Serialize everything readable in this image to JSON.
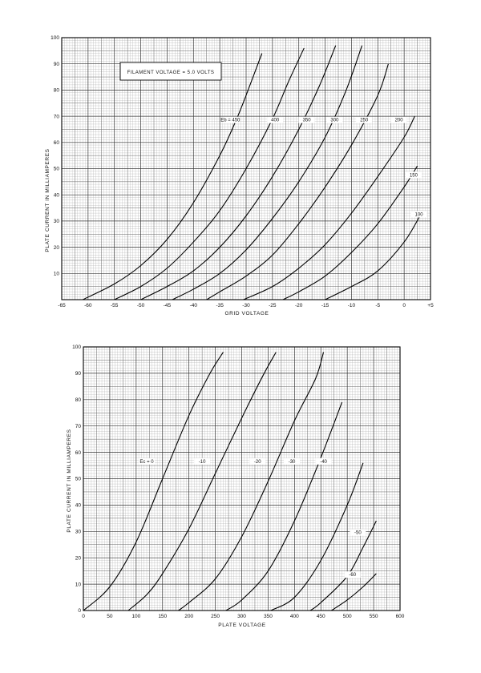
{
  "chart_data": [
    {
      "type": "line",
      "xlabel": "GRID VOLTAGE",
      "ylabel": "PLATE CURRENT IN MILLIAMPERES",
      "annotation": "FILAMENT VOLTAGE = 5.0 VOLTS",
      "xlim": [
        -65,
        5
      ],
      "ylim": [
        0,
        100
      ],
      "x_ticks": [
        "-65",
        "-60",
        "-55",
        "-50",
        "-45",
        "-40",
        "-35",
        "-30",
        "-25",
        "-20",
        "-15",
        "-10",
        "-5",
        "0",
        "+5"
      ],
      "y_ticks": [
        "10",
        "20",
        "30",
        "40",
        "50",
        "60",
        "70",
        "80",
        "90",
        "100"
      ],
      "grid": true,
      "series": [
        {
          "name": "Eb = 450",
          "label_at": [
            -33,
            68
          ],
          "points": [
            [
              -61,
              0
            ],
            [
              -55,
              6
            ],
            [
              -50,
              13
            ],
            [
              -45,
              23
            ],
            [
              -40,
              37
            ],
            [
              -35,
              55
            ],
            [
              -32,
              68
            ],
            [
              -30,
              78
            ],
            [
              -27,
              94
            ]
          ]
        },
        {
          "name": "400",
          "label_at": [
            -24.5,
            68
          ],
          "points": [
            [
              -55,
              0
            ],
            [
              -50,
              5
            ],
            [
              -45,
              12
            ],
            [
              -40,
              22
            ],
            [
              -35,
              34
            ],
            [
              -30,
              50
            ],
            [
              -25,
              69
            ],
            [
              -22,
              83
            ],
            [
              -19,
              96
            ]
          ]
        },
        {
          "name": "350",
          "label_at": [
            -18.5,
            68
          ],
          "points": [
            [
              -50,
              0
            ],
            [
              -45,
              5
            ],
            [
              -40,
              11
            ],
            [
              -35,
              20
            ],
            [
              -30,
              32
            ],
            [
              -25,
              47
            ],
            [
              -20,
              65
            ],
            [
              -16,
              82
            ],
            [
              -13,
              97
            ]
          ]
        },
        {
          "name": "300",
          "label_at": [
            -13.2,
            68
          ],
          "points": [
            [
              -44,
              0
            ],
            [
              -40,
              4
            ],
            [
              -35,
              10
            ],
            [
              -30,
              19
            ],
            [
              -25,
              31
            ],
            [
              -20,
              45
            ],
            [
              -15,
              62
            ],
            [
              -11,
              80
            ],
            [
              -8,
              97
            ]
          ]
        },
        {
          "name": "250",
          "label_at": [
            -7.6,
            68
          ],
          "points": [
            [
              -37.5,
              0
            ],
            [
              -35,
              3
            ],
            [
              -30,
              9
            ],
            [
              -25,
              17
            ],
            [
              -20,
              29
            ],
            [
              -15,
              43
            ],
            [
              -10,
              59
            ],
            [
              -5,
              78
            ],
            [
              -3,
              90
            ]
          ]
        },
        {
          "name": "200",
          "label_at": [
            -1.0,
            68
          ],
          "points": [
            [
              -30.5,
              0
            ],
            [
              -25,
              5
            ],
            [
              -20,
              12
            ],
            [
              -15,
              21
            ],
            [
              -10,
              33
            ],
            [
              -5,
              47
            ],
            [
              0,
              62
            ],
            [
              2,
              70
            ]
          ]
        },
        {
          "name": "150",
          "label_at": [
            1.8,
            47
          ],
          "points": [
            [
              -23,
              0
            ],
            [
              -20,
              3
            ],
            [
              -15,
              9
            ],
            [
              -10,
              18
            ],
            [
              -5,
              29
            ],
            [
              0,
              43
            ],
            [
              2.5,
              51
            ]
          ]
        },
        {
          "name": "100",
          "label_at": [
            2.8,
            32
          ],
          "points": [
            [
              -15,
              0
            ],
            [
              -10,
              5
            ],
            [
              -5,
              11
            ],
            [
              0,
              22
            ],
            [
              3,
              32
            ]
          ]
        }
      ]
    },
    {
      "type": "line",
      "xlabel": "PLATE VOLTAGE",
      "ylabel": "PLATE CURRENT IN MILLIAMPERES",
      "xlim": [
        0,
        600
      ],
      "ylim": [
        0,
        100
      ],
      "x_ticks": [
        "0",
        "50",
        "100",
        "150",
        "200",
        "250",
        "300",
        "350",
        "400",
        "450",
        "500",
        "550",
        "600"
      ],
      "y_ticks": [
        "10",
        "20",
        "30",
        "40",
        "50",
        "60",
        "70",
        "80",
        "90",
        "100"
      ],
      "grid": true,
      "series": [
        {
          "name": "Ec = 0",
          "label_at": [
            120,
            56
          ],
          "points": [
            [
              0,
              0
            ],
            [
              50,
              9
            ],
            [
              100,
              26
            ],
            [
              150,
              50
            ],
            [
              200,
              74
            ],
            [
              240,
              90
            ],
            [
              265,
              98
            ]
          ]
        },
        {
          "name": "-10",
          "label_at": [
            225,
            56
          ],
          "points": [
            [
              85,
              0
            ],
            [
              120,
              6
            ],
            [
              150,
              14
            ],
            [
              200,
              31
            ],
            [
              250,
              52
            ],
            [
              300,
              73
            ],
            [
              340,
              89
            ],
            [
              365,
              98
            ]
          ]
        },
        {
          "name": "-20",
          "label_at": [
            330,
            56
          ],
          "points": [
            [
              180,
              0
            ],
            [
              200,
              3
            ],
            [
              250,
              12
            ],
            [
              300,
              28
            ],
            [
              350,
              49
            ],
            [
              400,
              72
            ],
            [
              440,
              88
            ],
            [
              455,
              98
            ]
          ]
        },
        {
          "name": "-30",
          "label_at": [
            395,
            56
          ],
          "points": [
            [
              270,
              0
            ],
            [
              300,
              4
            ],
            [
              350,
              15
            ],
            [
              400,
              34
            ],
            [
              450,
              58
            ],
            [
              490,
              79
            ]
          ]
        },
        {
          "name": "-40",
          "label_at": [
            455,
            56
          ],
          "points": [
            [
              355,
              0
            ],
            [
              400,
              5
            ],
            [
              450,
              19
            ],
            [
              500,
              40
            ],
            [
              530,
              56
            ]
          ]
        },
        {
          "name": "-50",
          "label_at": [
            520,
            29
          ],
          "points": [
            [
              430,
              0
            ],
            [
              450,
              3
            ],
            [
              500,
              13
            ],
            [
              530,
              24
            ],
            [
              555,
              34
            ]
          ]
        },
        {
          "name": "-60",
          "label_at": [
            510,
            13
          ],
          "points": [
            [
              470,
              0
            ],
            [
              500,
              4
            ],
            [
              530,
              9
            ],
            [
              555,
              14
            ]
          ]
        }
      ]
    }
  ]
}
